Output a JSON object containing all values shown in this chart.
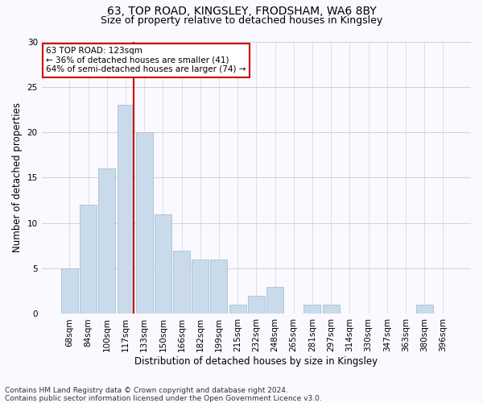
{
  "title_line1": "63, TOP ROAD, KINGSLEY, FRODSHAM, WA6 8BY",
  "title_line2": "Size of property relative to detached houses in Kingsley",
  "xlabel": "Distribution of detached houses by size in Kingsley",
  "ylabel": "Number of detached properties",
  "bar_labels": [
    "68sqm",
    "84sqm",
    "100sqm",
    "117sqm",
    "133sqm",
    "150sqm",
    "166sqm",
    "182sqm",
    "199sqm",
    "215sqm",
    "232sqm",
    "248sqm",
    "265sqm",
    "281sqm",
    "297sqm",
    "314sqm",
    "330sqm",
    "347sqm",
    "363sqm",
    "380sqm",
    "396sqm"
  ],
  "bar_values": [
    5,
    12,
    16,
    23,
    20,
    11,
    7,
    6,
    6,
    1,
    2,
    3,
    0,
    1,
    1,
    0,
    0,
    0,
    0,
    1,
    0
  ],
  "bar_color": "#c9daea",
  "bar_edgecolor": "#a8c0d6",
  "vline_x_index": 3,
  "vline_color": "#cc0000",
  "annotation_text": "63 TOP ROAD: 123sqm\n← 36% of detached houses are smaller (41)\n64% of semi-detached houses are larger (74) →",
  "annotation_box_color": "#ffffff",
  "annotation_box_edgecolor": "#cc0000",
  "ylim": [
    0,
    30
  ],
  "yticks": [
    0,
    5,
    10,
    15,
    20,
    25,
    30
  ],
  "grid_color": "#cccccc",
  "footnote": "Contains HM Land Registry data © Crown copyright and database right 2024.\nContains public sector information licensed under the Open Government Licence v3.0.",
  "bg_color": "#f9f9ff",
  "title_fontsize": 10,
  "subtitle_fontsize": 9,
  "axis_label_fontsize": 8.5,
  "tick_fontsize": 7.5,
  "annotation_fontsize": 7.5,
  "footnote_fontsize": 6.5
}
